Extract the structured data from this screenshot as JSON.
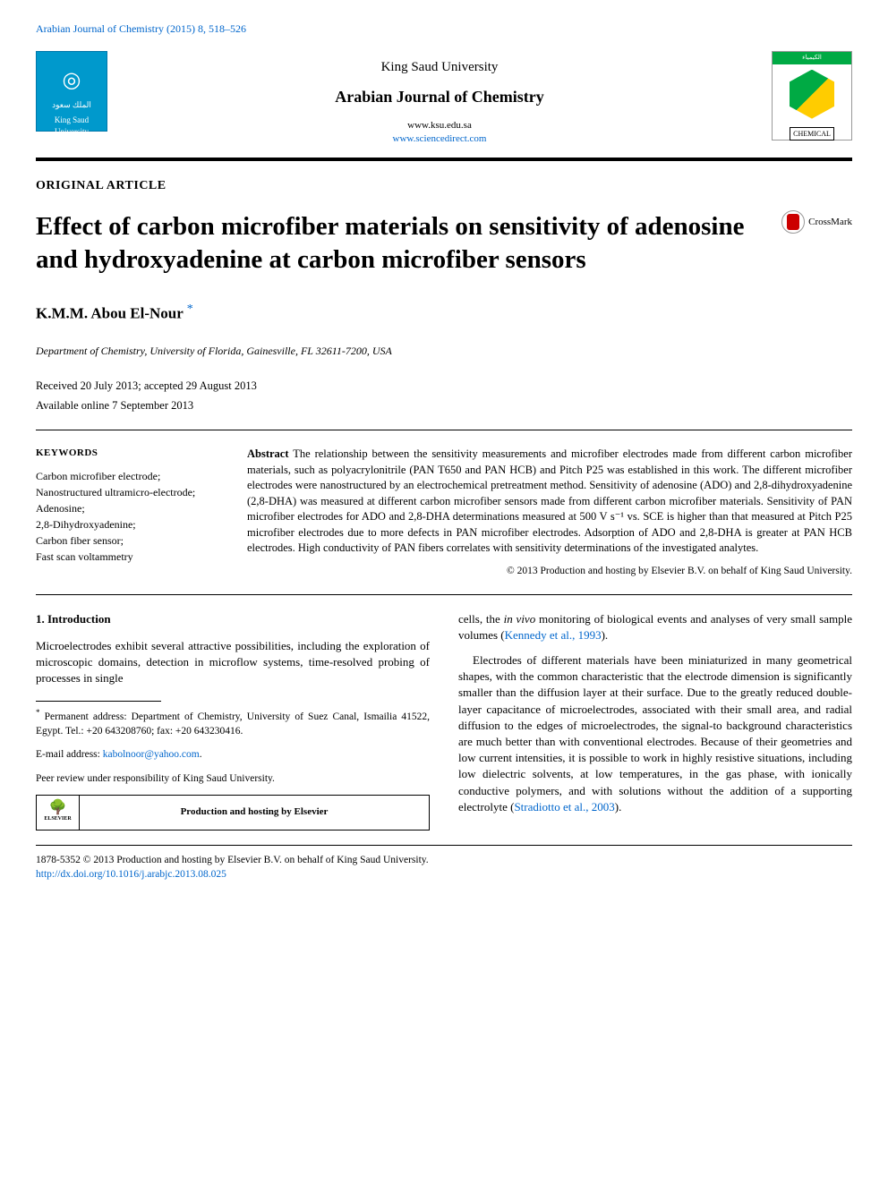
{
  "header_line": "Arabian Journal of Chemistry (2015) 8, 518–526",
  "journal_header": {
    "university": "King Saud University",
    "journal_name": "Arabian Journal of Chemistry",
    "url1": "www.ksu.edu.sa",
    "url2": "www.sciencedirect.com",
    "left_logo_text": "الملك سعود",
    "left_logo_sub": "King Saud University",
    "right_badge_ar": "الكيمياء",
    "right_chem": "CHEMICAL"
  },
  "article_type": "ORIGINAL ARTICLE",
  "title": "Effect of carbon microfiber materials on sensitivity of adenosine and hydroxyadenine at carbon microfiber sensors",
  "crossmark_label": "CrossMark",
  "authors": "K.M.M. Abou El-Nour",
  "affiliation": "Department of Chemistry, University of Florida, Gainesville, FL 32611-7200, USA",
  "dates": {
    "received_accepted": "Received 20 July 2013; accepted 29 August 2013",
    "online": "Available online 7 September 2013"
  },
  "keywords": {
    "heading": "KEYWORDS",
    "items": "Carbon microfiber electrode;\nNanostructured ultramicro-electrode;\nAdenosine;\n2,8-Dihydroxyadenine;\nCarbon fiber sensor;\nFast scan voltammetry"
  },
  "abstract": {
    "label": "Abstract",
    "text": "The relationship between the sensitivity measurements and microfiber electrodes made from different carbon microfiber materials, such as polyacrylonitrile (PAN T650 and PAN HCB) and Pitch P25 was established in this work. The different microfiber electrodes were nanostructured by an electrochemical pretreatment method. Sensitivity of adenosine (ADO) and 2,8-dihydroxyadenine (2,8-DHA) was measured at different carbon microfiber sensors made from different carbon microfiber materials. Sensitivity of PAN microfiber electrodes for ADO and 2,8-DHA determinations measured at 500 V s⁻¹ vs. SCE is higher than that measured at Pitch P25 microfiber electrodes due to more defects in PAN microfiber electrodes. Adsorption of ADO and 2,8-DHA is greater at PAN HCB electrodes. High conductivity of PAN fibers correlates with sensitivity determinations of the investigated analytes.",
    "copyright": "© 2013 Production and hosting by Elsevier B.V. on behalf of King Saud University."
  },
  "body": {
    "intro_heading": "1. Introduction",
    "col1_p1": "Microelectrodes exhibit several attractive possibilities, including the exploration of microscopic domains, detection in microflow systems, time-resolved probing of processes in single",
    "col2_p1_a": "cells, the ",
    "col2_p1_i": "in vivo",
    "col2_p1_b": " monitoring of biological events and analyses of very small sample volumes (",
    "col2_p1_link": "Kennedy et al., 1993",
    "col2_p1_c": ").",
    "col2_p2_a": "Electrodes of different materials have been miniaturized in many geometrical shapes, with the common characteristic that the electrode dimension is significantly smaller than the diffusion layer at their surface. Due to the greatly reduced double-layer capacitance of microelectrodes, associated with their small area, and radial diffusion to the edges of microelectrodes, the signal-to background characteristics are much better than with conventional electrodes. Because of their geometries and low current intensities, it is possible to work in highly resistive situations, including low dielectric solvents, at low temperatures, in the gas phase, with ionically conductive polymers, and with solutions without the addition of a supporting electrolyte (",
    "col2_p2_link": "Stradiotto et al., 2003",
    "col2_p2_b": ")."
  },
  "footnotes": {
    "perm": "Permanent address: Department of Chemistry, University of Suez Canal, Ismailia 41522, Egypt. Tel.: +20 643208760; fax: +20 643230416.",
    "email_label": "E-mail address: ",
    "email": "kabolnoor@yahoo.com",
    "peer": "Peer review under responsibility of King Saud University.",
    "hosting": "Production and hosting by Elsevier",
    "elsevier": "ELSEVIER"
  },
  "bottom": {
    "issn": "1878-5352 © 2013 Production and hosting by Elsevier B.V. on behalf of King Saud University.",
    "doi": "http://dx.doi.org/10.1016/j.arabjc.2013.08.025"
  },
  "colors": {
    "link": "#0066cc",
    "logo_left_bg": "#0099cc",
    "badge_green": "#00aa44",
    "badge_yellow": "#ffcc00",
    "crossmark_red": "#cc0000"
  }
}
